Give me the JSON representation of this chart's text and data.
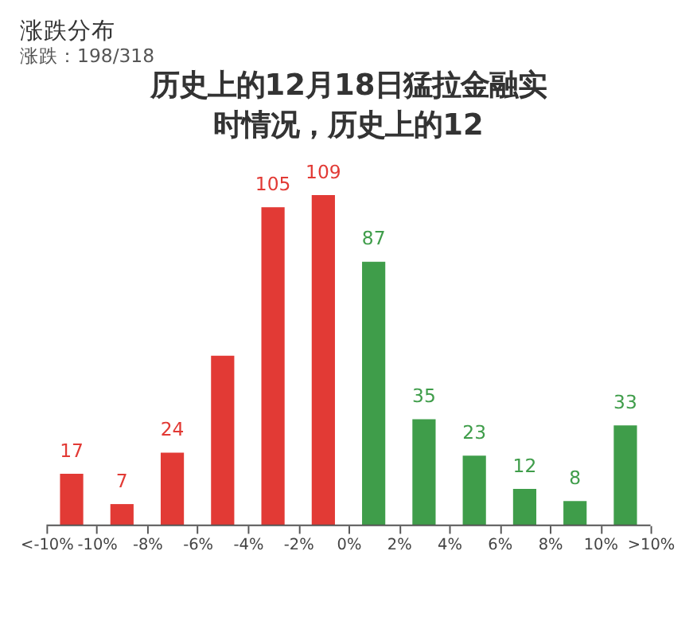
{
  "chart_data": {
    "type": "bar",
    "title": "涨跌分布",
    "subtitle": "涨跌：198/318",
    "annotations": [
      "历史上的12月18日猛拉金融实时情况，历史上的12"
    ],
    "x": [
      -11,
      -9,
      -7,
      -5,
      -3,
      -1,
      1,
      3,
      5,
      7,
      9,
      11
    ],
    "values": [
      17,
      7,
      24,
      56,
      105,
      109,
      87,
      35,
      23,
      12,
      8,
      33
    ],
    "value_labels": [
      "17",
      "7",
      "24",
      null,
      "105",
      "109",
      "87",
      "35",
      "23",
      "12",
      "8",
      "33"
    ],
    "colors": [
      "#e23a35",
      "#e23a35",
      "#e23a35",
      "#e23a35",
      "#e23a35",
      "#e23a35",
      "#3f9d4a",
      "#3f9d4a",
      "#3f9d4a",
      "#3f9d4a",
      "#3f9d4a",
      "#3f9d4a"
    ],
    "xlim": [
      -12,
      12
    ],
    "xticks": [
      {
        "value": -12,
        "label": "<-10%"
      },
      {
        "value": -10,
        "label": "-10%"
      },
      {
        "value": -8,
        "label": "-8%"
      },
      {
        "value": -6,
        "label": "-6%"
      },
      {
        "value": -4,
        "label": "-4%"
      },
      {
        "value": -2,
        "label": "-2%"
      },
      {
        "value": 0,
        "label": "0%"
      },
      {
        "value": 2,
        "label": "2%"
      },
      {
        "value": 4,
        "label": "4%"
      },
      {
        "value": 6,
        "label": "6%"
      },
      {
        "value": 8,
        "label": "8%"
      },
      {
        "value": 10,
        "label": "10%"
      },
      {
        "value": 12,
        "label": ">10%"
      }
    ],
    "tick_labels": "x"
  }
}
